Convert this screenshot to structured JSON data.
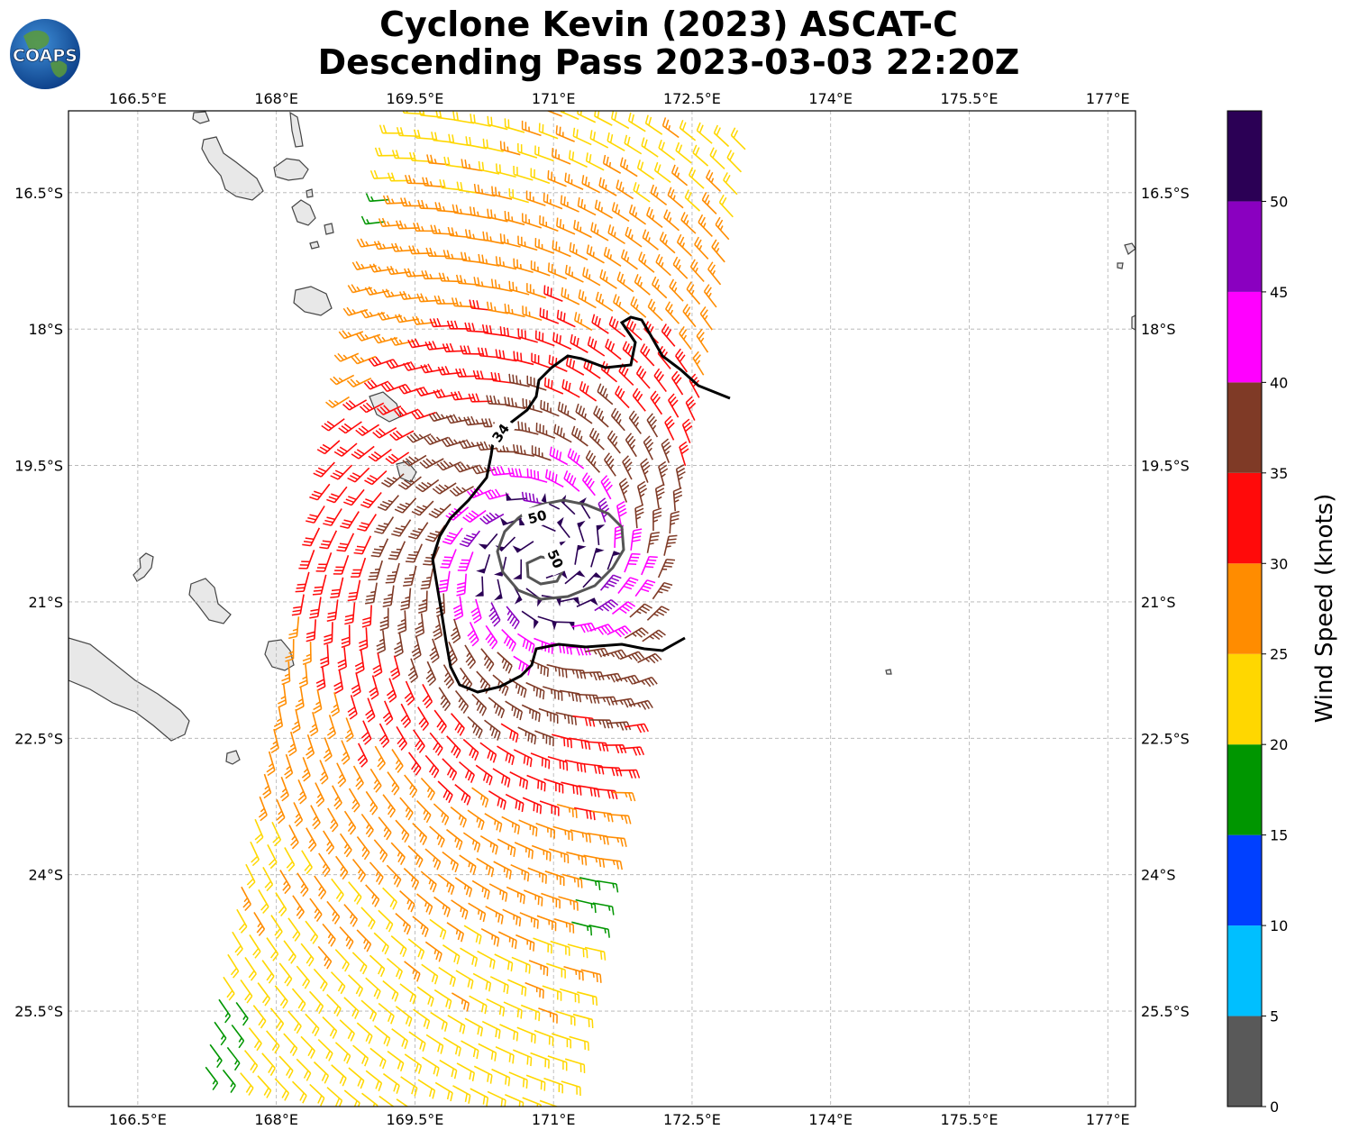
{
  "logo": {
    "text": "COAPS"
  },
  "title": {
    "line1": "Cyclone Kevin (2023) ASCAT-C",
    "line2": "Descending Pass 2023-03-03 22:20Z"
  },
  "map": {
    "lon_range": [
      165.75,
      177.3
    ],
    "lat_range": [
      -26.55,
      -15.6
    ],
    "lon_ticks": [
      {
        "value": 166.5,
        "label": "166.5°E"
      },
      {
        "value": 168.0,
        "label": "168°E"
      },
      {
        "value": 169.5,
        "label": "169.5°E"
      },
      {
        "value": 171.0,
        "label": "171°E"
      },
      {
        "value": 172.5,
        "label": "172.5°E"
      },
      {
        "value": 174.0,
        "label": "174°E"
      },
      {
        "value": 175.5,
        "label": "175.5°E"
      },
      {
        "value": 177.0,
        "label": "177°E"
      }
    ],
    "lat_ticks": [
      {
        "value": -16.5,
        "label": "16.5°S"
      },
      {
        "value": -18.0,
        "label": "18°S"
      },
      {
        "value": -19.5,
        "label": "19.5°S"
      },
      {
        "value": -21.0,
        "label": "21°S"
      },
      {
        "value": -22.5,
        "label": "22.5°S"
      },
      {
        "value": -24.0,
        "label": "24°S"
      },
      {
        "value": -25.5,
        "label": "25.5°S"
      }
    ],
    "gridlines": true,
    "land_color": "#e8e8e8",
    "coast_color": "#444444"
  },
  "storm": {
    "center_lon": 170.9,
    "center_lat": -20.55,
    "swath_lon_at_north": [
      169.35,
      173.0
    ],
    "swath_lon_at_south": [
      167.3,
      171.1
    ]
  },
  "contours": [
    {
      "label": "34",
      "color": "#000000"
    },
    {
      "label": "50",
      "color": "#555555"
    },
    {
      "label": "50",
      "color": "#555555"
    }
  ],
  "colorbar": {
    "title": "Wind Speed (knots)",
    "bins": [
      {
        "min": 0,
        "max": 5,
        "color": "#595959"
      },
      {
        "min": 5,
        "max": 10,
        "color": "#00bfff"
      },
      {
        "min": 10,
        "max": 15,
        "color": "#0040ff"
      },
      {
        "min": 15,
        "max": 20,
        "color": "#009600"
      },
      {
        "min": 20,
        "max": 25,
        "color": "#ffd700"
      },
      {
        "min": 25,
        "max": 30,
        "color": "#ff8c00"
      },
      {
        "min": 30,
        "max": 35,
        "color": "#ff0a0a"
      },
      {
        "min": 35,
        "max": 40,
        "color": "#7f3a26"
      },
      {
        "min": 40,
        "max": 45,
        "color": "#ff00ff"
      },
      {
        "min": 45,
        "max": 50,
        "color": "#8a00c0"
      },
      {
        "min": 50,
        "max": 55,
        "color": "#2b0055"
      }
    ],
    "tick_labels": [
      "0",
      "5",
      "10",
      "15",
      "20",
      "25",
      "30",
      "35",
      "40",
      "45",
      "50"
    ]
  }
}
